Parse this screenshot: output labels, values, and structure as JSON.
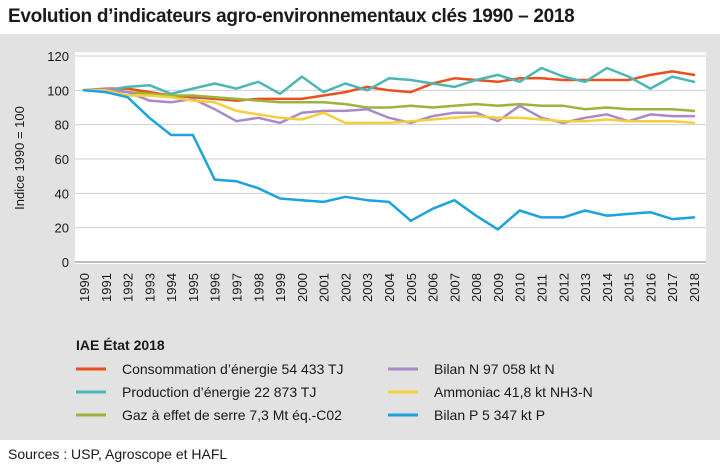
{
  "chart_data": {
    "type": "line",
    "title": "Evolution d’indicateurs agro-environnementaux clés 1990 – 2018",
    "ylabel": "Indice 1990 = 100",
    "xlabel": "",
    "ylim": [
      0,
      120
    ],
    "yticks": [
      0,
      20,
      40,
      60,
      80,
      100,
      120
    ],
    "x": [
      1990,
      1991,
      1992,
      1993,
      1994,
      1995,
      1996,
      1997,
      1998,
      1999,
      2000,
      2001,
      2002,
      2003,
      2004,
      2005,
      2006,
      2007,
      2008,
      2009,
      2010,
      2011,
      2012,
      2013,
      2014,
      2015,
      2016,
      2017,
      2018
    ],
    "legend_title": "IAE   État 2018",
    "series": [
      {
        "name": "Consommation d’énergie",
        "label": "Consommation d’énergie  54 433 TJ",
        "color": "#e8501e",
        "values": [
          100,
          101,
          101,
          99,
          97,
          96,
          95,
          94,
          95,
          95,
          95,
          97,
          99,
          102,
          100,
          99,
          104,
          107,
          106,
          105,
          107,
          107,
          106,
          106,
          106,
          106,
          109,
          111,
          109
        ]
      },
      {
        "name": "Production d’énergie",
        "label": "Production d’énergie  22 873 TJ",
        "color": "#4ab7b4",
        "values": [
          100,
          100,
          102,
          103,
          98,
          101,
          104,
          101,
          105,
          98,
          108,
          99,
          104,
          100,
          107,
          106,
          104,
          102,
          106,
          109,
          105,
          113,
          108,
          105,
          113,
          108,
          101,
          108,
          105
        ]
      },
      {
        "name": "Gaz à effet de serre",
        "label": "Gaz à effet de serre  7,3 Mt éq.-C02",
        "color": "#9bb43c",
        "values": [
          100,
          100,
          99,
          98,
          97,
          97,
          96,
          95,
          94,
          93,
          93,
          93,
          92,
          90,
          90,
          91,
          90,
          91,
          92,
          91,
          92,
          91,
          91,
          89,
          90,
          89,
          89,
          89,
          88
        ]
      },
      {
        "name": "Bilan N",
        "label": "Bilan N  97 058 kt N",
        "color": "#a98ac6",
        "values": [
          100,
          101,
          99,
          94,
          93,
          95,
          89,
          82,
          84,
          81,
          87,
          88,
          88,
          89,
          84,
          81,
          85,
          87,
          87,
          82,
          91,
          84,
          81,
          84,
          86,
          82,
          86,
          85,
          85
        ]
      },
      {
        "name": "Ammoniac",
        "label": "Ammoniac  41,8 kt NH3-N",
        "color": "#f5cf3a",
        "values": [
          100,
          100,
          97,
          97,
          96,
          94,
          93,
          88,
          86,
          84,
          83,
          87,
          81,
          81,
          81,
          82,
          83,
          84,
          85,
          84,
          84,
          83,
          82,
          82,
          83,
          82,
          82,
          82,
          81
        ]
      },
      {
        "name": "Bilan P",
        "label": "Bilan P  5 347 kt P",
        "color": "#1ca2dc",
        "values": [
          100,
          99,
          96,
          84,
          74,
          74,
          48,
          47,
          43,
          37,
          36,
          35,
          38,
          36,
          35,
          24,
          31,
          36,
          27,
          19,
          30,
          26,
          26,
          30,
          27,
          28,
          29,
          25,
          26
        ]
      }
    ]
  },
  "source": "Sources : USP, Agroscope et HAFL"
}
